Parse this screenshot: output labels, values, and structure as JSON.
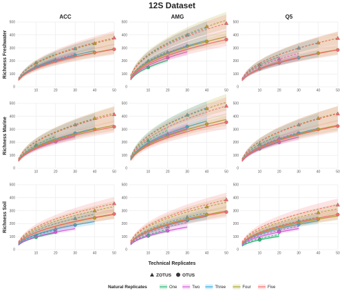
{
  "chart_data": {
    "type": "line",
    "title": "12S Dataset",
    "columns": [
      "ACC",
      "AMG",
      "Q5"
    ],
    "rows": [
      "Richness Freshwater",
      "Richness Marine",
      "Richness Soil"
    ],
    "xlabel": "Technical Replicates",
    "xlim": [
      0,
      50
    ],
    "ylim": [
      0,
      500
    ],
    "x_ticks": [
      10,
      20,
      30,
      40,
      50
    ],
    "y_ticks": [
      0,
      100,
      200,
      300,
      400,
      500
    ],
    "shape_legend": [
      {
        "label": "ZOTUS",
        "shape": "triangle"
      },
      {
        "label": "OTUS",
        "shape": "circle"
      }
    ],
    "color_legend_title": "Natural Replicates",
    "series": [
      {
        "name": "One",
        "color": "#2bb673",
        "end_x": 10
      },
      {
        "name": "Two",
        "color": "#d45ad6",
        "end_x": 20
      },
      {
        "name": "Three",
        "color": "#28a9e1",
        "end_x": 30
      },
      {
        "name": "Four",
        "color": "#a7a424",
        "end_x": 40
      },
      {
        "name": "Five",
        "color": "#f26b6b",
        "end_x": 50
      }
    ],
    "panels": [
      {
        "zotus": [
          185,
          210,
          295,
          335,
          378
        ],
        "otus": [
          155,
          200,
          245,
          265,
          290
        ]
      },
      {
        "zotus": [
          200,
          265,
          400,
          465,
          490
        ],
        "otus": [
          150,
          225,
          315,
          350,
          365
        ]
      },
      {
        "zotus": [
          170,
          215,
          300,
          340,
          375
        ],
        "otus": [
          140,
          185,
          225,
          260,
          285
        ]
      },
      {
        "zotus": [
          180,
          215,
          335,
          385,
          415
        ],
        "otus": [
          165,
          205,
          270,
          300,
          320
        ]
      },
      {
        "zotus": [
          215,
          265,
          410,
          460,
          480
        ],
        "otus": [
          185,
          255,
          320,
          340,
          355
        ]
      },
      {
        "zotus": [
          185,
          230,
          335,
          385,
          420
        ],
        "otus": [
          150,
          200,
          270,
          300,
          325
        ]
      },
      {
        "zotus": [
          110,
          160,
          240,
          300,
          355
        ],
        "otus": [
          95,
          135,
          190,
          245,
          275
        ]
      },
      {
        "zotus": [
          115,
          175,
          250,
          330,
          385
        ],
        "otus": [
          105,
          145,
          225,
          270,
          290
        ]
      },
      {
        "zotus": [
          85,
          150,
          220,
          285,
          345
        ],
        "otus": [
          75,
          135,
          195,
          235,
          270
        ]
      }
    ]
  }
}
